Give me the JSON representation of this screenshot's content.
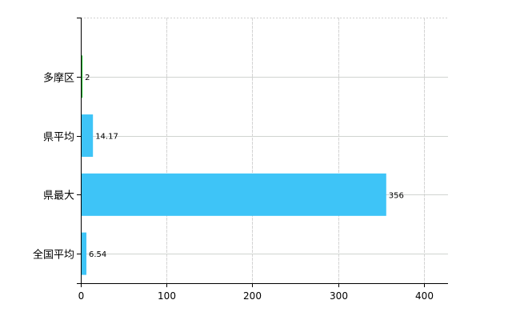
{
  "chart_data": {
    "type": "bar",
    "orientation": "horizontal",
    "categories": [
      "多摩区",
      "県平均",
      "県最大",
      "全国平均"
    ],
    "values": [
      2,
      14.17,
      356,
      6.54
    ],
    "data_labels": [
      "2",
      "14.17",
      "356",
      "6.54"
    ],
    "bar_colors": [
      "#22bb33",
      "#3ec4f7",
      "#3ec4f7",
      "#3ec4f7"
    ],
    "xlim": [
      0,
      428
    ],
    "x_ticks": [
      0,
      100,
      200,
      300,
      400
    ],
    "x_tick_labels": [
      "0",
      "100",
      "200",
      "300",
      "400"
    ],
    "title": "",
    "xlabel": "",
    "ylabel": "",
    "grid": true,
    "legend": "none"
  }
}
